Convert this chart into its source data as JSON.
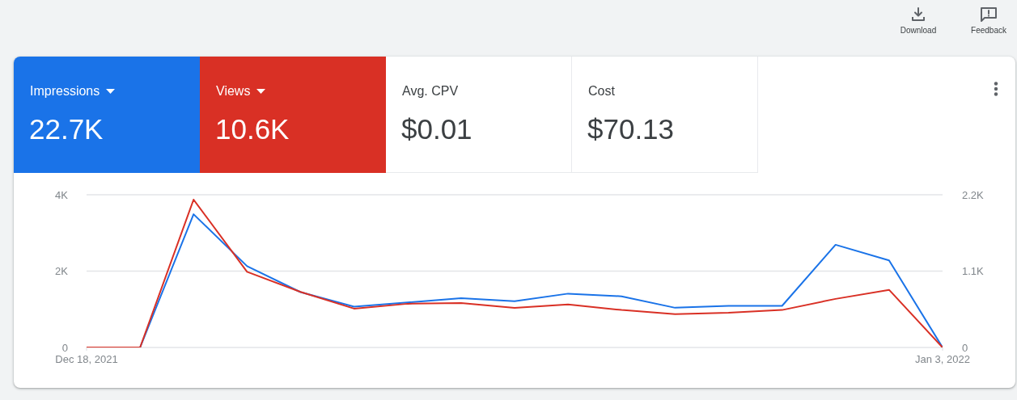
{
  "chart_data": [
    {
      "type": "other",
      "categories": [
        "Impressions",
        "Views",
        "Avg. CPV",
        "Cost"
      ],
      "value_labels": [
        "22.7K",
        "10.6K",
        "$0.01",
        "$70.13"
      ],
      "colors": [
        "#1a73e8",
        "#d93025",
        "#ffffff",
        "#ffffff"
      ],
      "annotations": [
        "Download",
        "Feedback"
      ]
    },
    {
      "type": "line",
      "x": [
        "2021-12-18",
        "2021-12-19",
        "2021-12-20",
        "2021-12-21",
        "2021-12-22",
        "2021-12-23",
        "2021-12-24",
        "2021-12-25",
        "2021-12-26",
        "2021-12-27",
        "2021-12-28",
        "2021-12-29",
        "2021-12-30",
        "2021-12-31",
        "2022-01-01",
        "2022-01-02",
        "2022-01-03"
      ],
      "xlim": [
        "2021-12-18",
        "2022-01-03"
      ],
      "xticks": [
        {
          "value": "2021-12-18",
          "label": "Dec 18, 2021"
        },
        {
          "value": "2022-01-03",
          "label": "Jan 3, 2022"
        }
      ],
      "ylim": [
        0,
        4000
      ],
      "yticks": [
        0,
        {
          "value": 2000,
          "label": "2K"
        },
        {
          "value": 4000,
          "label": "4K"
        }
      ],
      "y2lim": [
        0,
        2200
      ],
      "y2ticks": [
        0,
        {
          "value": 1100,
          "label": "1.1K"
        },
        {
          "value": 2200,
          "label": "2.2K"
        }
      ],
      "series": [
        {
          "color": "#1a73e8",
          "values": [
            0,
            0,
            3490,
            2130,
            1450,
            1070,
            1180,
            1290,
            1210,
            1410,
            1340,
            1040,
            1090,
            1090,
            2690,
            2280,
            0
          ]
        },
        {
          "color": "#d93025",
          "axis": "y2",
          "values": [
            0,
            0,
            2130,
            1090,
            800,
            560,
            630,
            640,
            570,
            620,
            540,
            480,
            500,
            540,
            700,
            830,
            0
          ]
        }
      ],
      "grid": "y"
    }
  ]
}
